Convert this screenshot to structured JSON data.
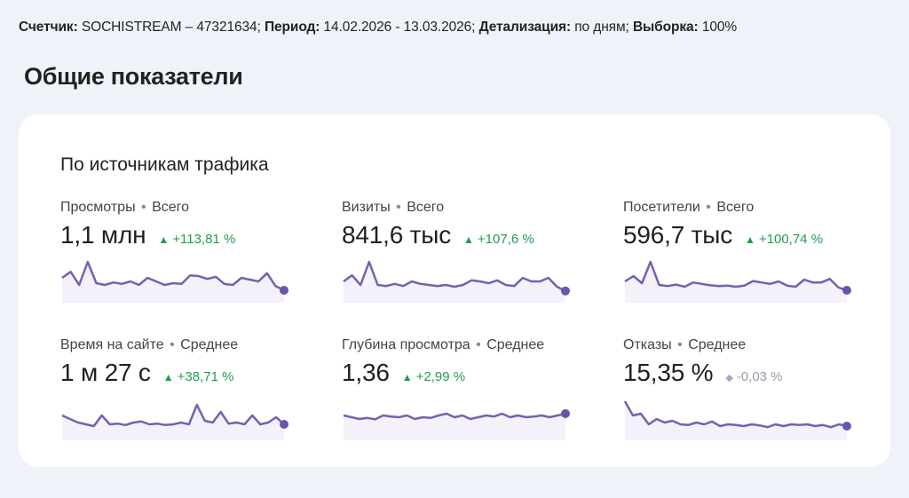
{
  "header": {
    "counter_label": "Счетчик:",
    "counter_value": "SOCHISTREAM – 47321634;",
    "period_label": "Период:",
    "period_value": "14.02.2026 - 13.03.2026;",
    "detail_label": "Детализация:",
    "detail_value": "по дням;",
    "sample_label": "Выборка:",
    "sample_value": "100%"
  },
  "page_title": "Общие показатели",
  "card": {
    "title": "По источникам трафика",
    "metrics": [
      {
        "name": "Просмотры",
        "agg": "Всего",
        "value": "1,1 млн",
        "change": "+113,81 %",
        "trend": "up",
        "spark": [
          0.55,
          0.72,
          0.35,
          1.0,
          0.4,
          0.35,
          0.42,
          0.38,
          0.45,
          0.35,
          0.55,
          0.45,
          0.35,
          0.4,
          0.38,
          0.62,
          0.6,
          0.52,
          0.58,
          0.38,
          0.35,
          0.55,
          0.5,
          0.45,
          0.68,
          0.32,
          0.2
        ]
      },
      {
        "name": "Визиты",
        "agg": "Всего",
        "value": "841,6 тыс",
        "change": "+107,6 %",
        "trend": "up",
        "spark": [
          0.45,
          0.62,
          0.35,
          1.0,
          0.35,
          0.32,
          0.38,
          0.32,
          0.45,
          0.38,
          0.35,
          0.32,
          0.35,
          0.3,
          0.35,
          0.48,
          0.45,
          0.4,
          0.48,
          0.35,
          0.32,
          0.55,
          0.45,
          0.45,
          0.55,
          0.3,
          0.18
        ]
      },
      {
        "name": "Посетители",
        "agg": "Всего",
        "value": "596,7 тыс",
        "change": "+100,74 %",
        "trend": "up",
        "spark": [
          0.45,
          0.6,
          0.4,
          1.0,
          0.35,
          0.32,
          0.36,
          0.3,
          0.42,
          0.38,
          0.34,
          0.32,
          0.33,
          0.3,
          0.33,
          0.46,
          0.42,
          0.38,
          0.45,
          0.33,
          0.3,
          0.5,
          0.42,
          0.42,
          0.52,
          0.28,
          0.2
        ]
      },
      {
        "name": "Время на сайте",
        "agg": "Среднее",
        "value": "1 м 27 с",
        "change": "+38,71 %",
        "trend": "up",
        "spark": [
          0.55,
          0.45,
          0.35,
          0.3,
          0.25,
          0.55,
          0.3,
          0.32,
          0.28,
          0.35,
          0.38,
          0.3,
          0.32,
          0.28,
          0.3,
          0.35,
          0.3,
          0.85,
          0.4,
          0.35,
          0.65,
          0.32,
          0.35,
          0.3,
          0.55,
          0.3,
          0.35,
          0.5,
          0.3
        ]
      },
      {
        "name": "Глубина просмотра",
        "agg": "Среднее",
        "value": "1,36",
        "change": "+2,99 %",
        "trend": "up",
        "spark": [
          0.55,
          0.5,
          0.45,
          0.48,
          0.44,
          0.55,
          0.52,
          0.5,
          0.55,
          0.45,
          0.5,
          0.48,
          0.55,
          0.6,
          0.5,
          0.55,
          0.45,
          0.5,
          0.55,
          0.52,
          0.6,
          0.5,
          0.55,
          0.5,
          0.52,
          0.55,
          0.5,
          0.55,
          0.6
        ]
      },
      {
        "name": "Отказы",
        "agg": "Среднее",
        "value": "15,35 %",
        "change": "-0,03 %",
        "trend": "neutral",
        "spark": [
          0.95,
          0.55,
          0.6,
          0.3,
          0.45,
          0.35,
          0.4,
          0.3,
          0.28,
          0.35,
          0.3,
          0.38,
          0.25,
          0.3,
          0.28,
          0.25,
          0.3,
          0.27,
          0.22,
          0.3,
          0.25,
          0.3,
          0.28,
          0.3,
          0.25,
          0.28,
          0.22,
          0.3,
          0.25
        ]
      }
    ]
  },
  "colors": {
    "spark_line": "#7461b0",
    "spark_end": "#6a55aa",
    "spark_fill": "#ece8f6",
    "positive": "#1f9d4e",
    "neutral": "#9a9aa8"
  }
}
